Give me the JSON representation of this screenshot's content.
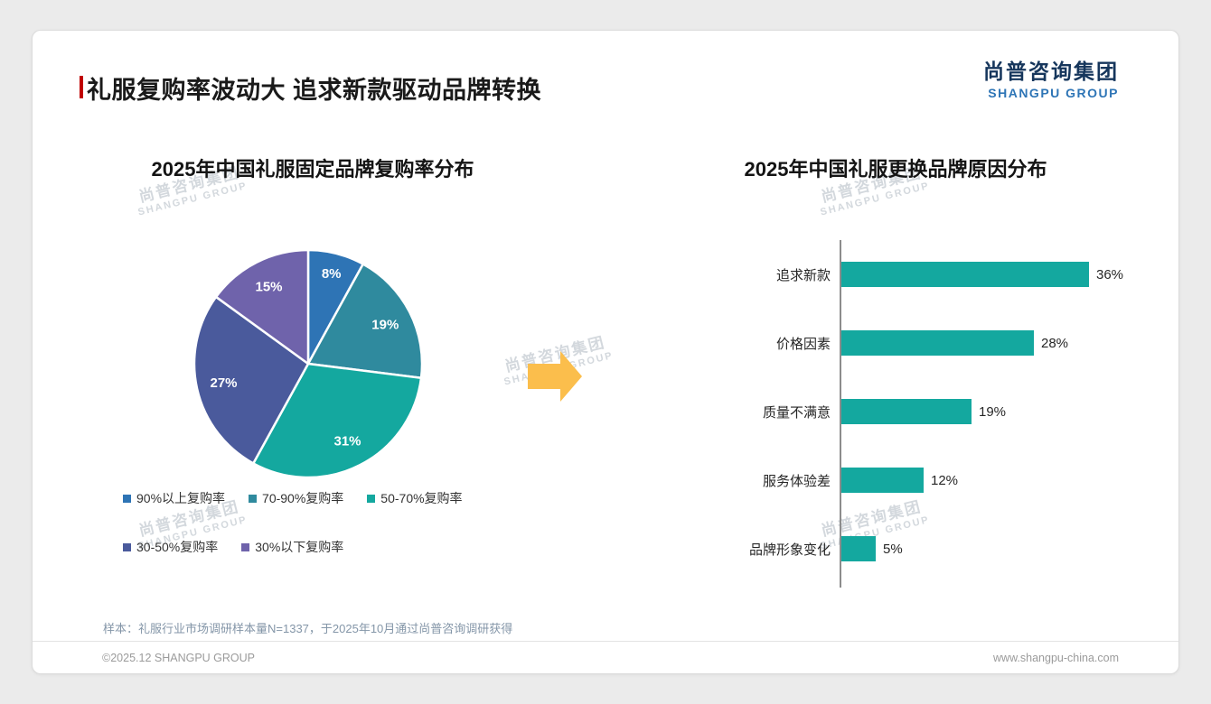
{
  "page": {
    "title": "礼服复购率波动大 追求新款驱动品牌转换",
    "logo": {
      "cn": "尚普咨询集团",
      "en": "SHANGPU GROUP"
    },
    "watermark": {
      "cn": "尚普咨询集团",
      "en": "SHANGPU GROUP"
    },
    "footnote": "样本：礼服行业市场调研样本量N=1337，于2025年10月通过尚普咨询调研获得",
    "footer_left": "©2025.12 SHANGPU GROUP",
    "footer_right": "www.shangpu-china.com"
  },
  "chart_data": [
    {
      "type": "pie",
      "title": "2025年中国礼服固定品牌复购率分布",
      "labels": [
        "90%以上复购率",
        "70-90%复购率",
        "50-70%复购率",
        "30-50%复购率",
        "30%以下复购率"
      ],
      "values": [
        8,
        19,
        31,
        27,
        15
      ],
      "colors": [
        "#2E74B5",
        "#2F8A9E",
        "#14A89F",
        "#4A5A9C",
        "#6F63AB"
      ],
      "value_suffix": "%",
      "start_angle_deg": 0,
      "direction": "clockwise",
      "legend_position": "bottom",
      "labels_inside": true
    },
    {
      "type": "bar",
      "orientation": "horizontal",
      "title": "2025年中国礼服更换品牌原因分布",
      "categories": [
        "追求新款",
        "价格因素",
        "质量不满意",
        "服务体验差",
        "品牌形象变化"
      ],
      "values": [
        36,
        28,
        19,
        12,
        5
      ],
      "bar_color": "#14A89F",
      "xlim": [
        0,
        40
      ],
      "value_suffix": "%",
      "grid": false,
      "axis_line": true
    }
  ],
  "decor": {
    "arrow_color": "#FBBE4C",
    "accent_color": "#C00000"
  }
}
